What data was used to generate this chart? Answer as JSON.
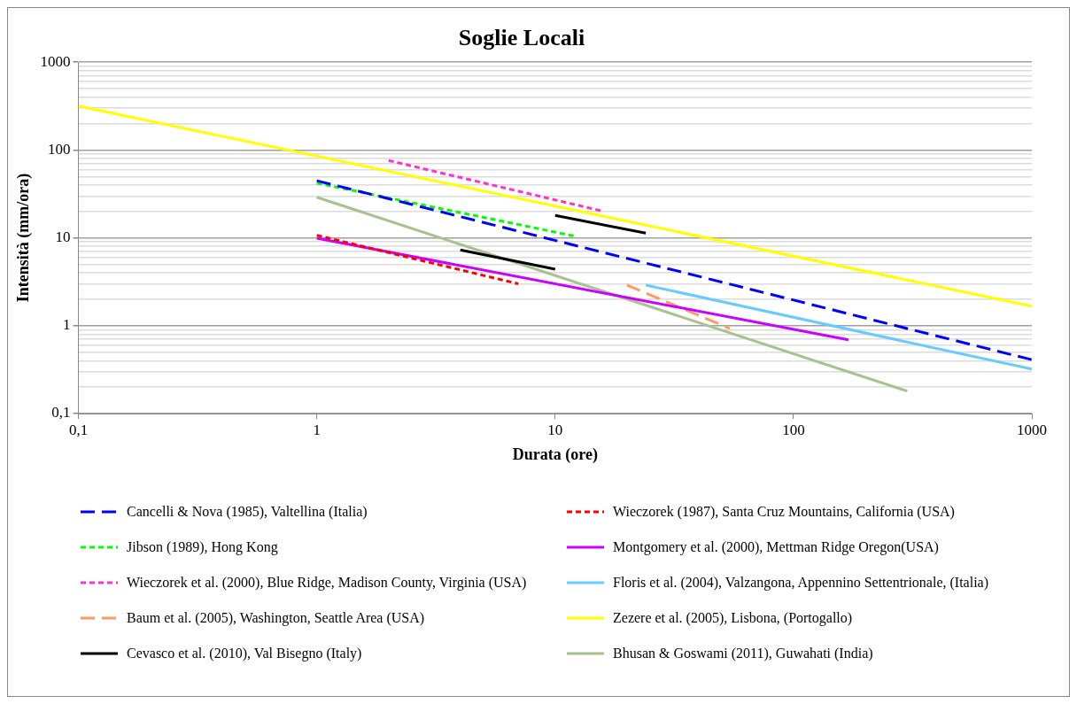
{
  "chart_data": {
    "type": "line",
    "title": "Soglie Locali",
    "xlabel": "Durata (ore)",
    "ylabel": "Intensità (mm/ora)",
    "log": "xy",
    "grid": "y",
    "legend": "bottom",
    "marker": "none",
    "xlim": [
      0.1,
      1000
    ],
    "xticks": [
      {
        "value": 0.1,
        "label": "0,1"
      },
      1,
      10,
      100,
      1000
    ],
    "ylim": [
      0.1,
      1000
    ],
    "yticks": [
      {
        "value": 0.1,
        "label": "0,1"
      },
      {
        "value": 0.2,
        "label": null
      },
      {
        "value": 0.3,
        "label": null
      },
      {
        "value": 0.4,
        "label": null
      },
      {
        "value": 0.5,
        "label": null
      },
      {
        "value": 0.6,
        "label": null
      },
      {
        "value": 0.7,
        "label": null
      },
      {
        "value": 0.8,
        "label": null
      },
      {
        "value": 0.9,
        "label": null
      },
      1,
      {
        "value": 2,
        "label": null
      },
      {
        "value": 3,
        "label": null
      },
      {
        "value": 4,
        "label": null
      },
      {
        "value": 5,
        "label": null
      },
      {
        "value": 6,
        "label": null
      },
      {
        "value": 7,
        "label": null
      },
      {
        "value": 8,
        "label": null
      },
      {
        "value": 9,
        "label": null
      },
      10,
      {
        "value": 20,
        "label": null
      },
      {
        "value": 30,
        "label": null
      },
      {
        "value": 40,
        "label": null
      },
      {
        "value": 50,
        "label": null
      },
      {
        "value": 60,
        "label": null
      },
      {
        "value": 70,
        "label": null
      },
      {
        "value": 80,
        "label": null
      },
      {
        "value": 90,
        "label": null
      },
      100,
      {
        "value": 200,
        "label": null
      },
      {
        "value": 300,
        "label": null
      },
      {
        "value": 400,
        "label": null
      },
      {
        "value": 500,
        "label": null
      },
      {
        "value": 600,
        "label": null
      },
      {
        "value": 700,
        "label": null
      },
      {
        "value": 800,
        "label": null
      },
      {
        "value": 900,
        "label": null
      },
      1000
    ],
    "series": [
      {
        "name": "Cancelli & Nova (1985), Valtellina (Italia)",
        "color": "#0000ff",
        "line_style": "dashed",
        "x": [
          1,
          1000
        ],
        "values": [
          44.7,
          0.41
        ]
      },
      {
        "name": "Wieczorek (1987), Santa Cruz Mountains, California (USA)",
        "color": "#ff0000",
        "line_style": "dotted",
        "x": [
          1,
          7
        ],
        "values": [
          10.7,
          3
        ]
      },
      {
        "name": "Jibson (1989), Hong Kong",
        "color": "#00ff00",
        "line_style": "dotted",
        "x": [
          1,
          12
        ],
        "values": [
          42,
          10.5
        ]
      },
      {
        "name": "Montgomery et al. (2000), Mettman Ridge Oregon(USA)",
        "color": "#cc00ff",
        "line_style": "solid",
        "x": [
          1,
          170
        ],
        "values": [
          9.9,
          0.69
        ]
      },
      {
        "name": "Wieczorek et al. (2000), Blue Ridge, Madison County, Virginia (USA)",
        "color": "#ff33cc",
        "line_style": "dotted",
        "x": [
          2,
          16
        ],
        "values": [
          76,
          20
        ]
      },
      {
        "name": "Floris et al. (2004), Valzangona, Appennino Settentrionale, (Italia)",
        "color": "#66ccff",
        "line_style": "solid",
        "x": [
          24,
          1000
        ],
        "values": [
          2.9,
          0.32
        ]
      },
      {
        "name": "Baum et al. (2005), Washington, Seattle Area (USA)",
        "color": "#ff9966",
        "line_style": "dashed",
        "x": [
          20,
          54
        ],
        "values": [
          2.9,
          0.93
        ]
      },
      {
        "name": "Zezere et al. (2005), Lisbona, (Portogallo)",
        "color": "#ffff00",
        "line_style": "solid",
        "x": [
          0.1,
          1000
        ],
        "values": [
          316,
          1.67
        ]
      },
      {
        "name": "Cevasco et al. (2010), Val Bisegno (Italy)",
        "color": "#000000",
        "line_style": "solid",
        "x": [
          4,
          10,
          null,
          10,
          24
        ],
        "values": [
          7.3,
          4.4,
          null,
          18,
          11.3
        ]
      },
      {
        "name": "Bhusan & Goswami (2011), Guwahati (India)",
        "color": "#a9c18f",
        "line_style": "solid",
        "x": [
          1,
          300
        ],
        "values": [
          29,
          0.18
        ]
      }
    ]
  }
}
